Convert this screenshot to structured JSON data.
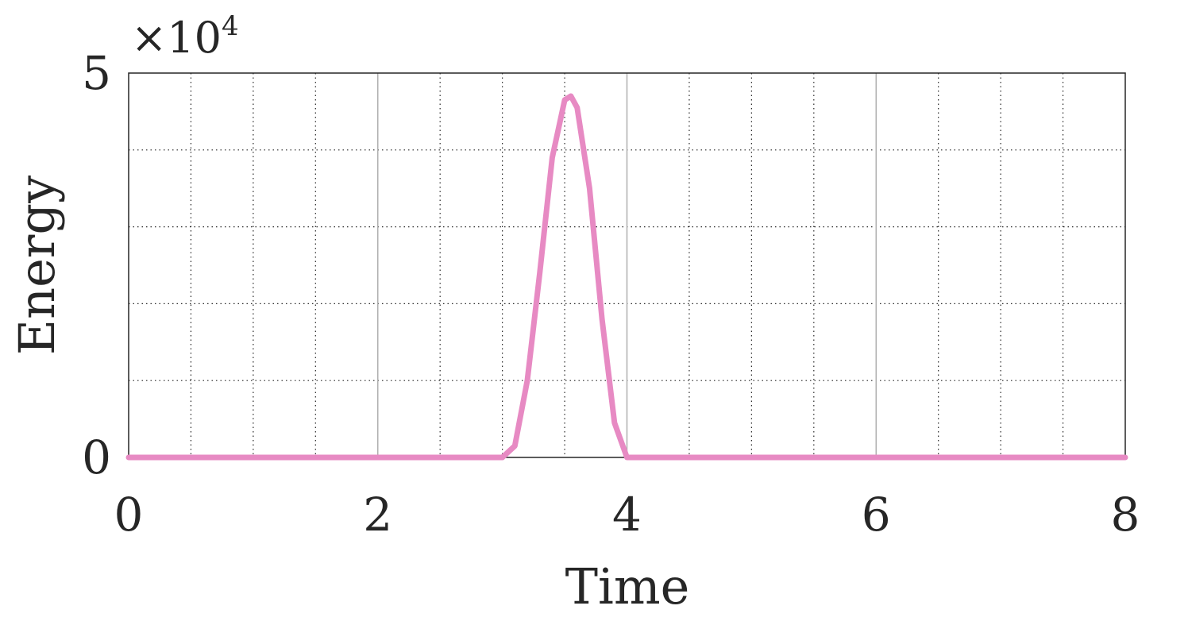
{
  "chart_data": {
    "type": "line",
    "xlabel": "Time",
    "ylabel": "Energy",
    "xlim": [
      0,
      8
    ],
    "ylim": [
      0,
      50000
    ],
    "xticks": [
      "0",
      "2",
      "4",
      "6",
      "8"
    ],
    "yticks": [
      "0",
      "5"
    ],
    "y_exponent": {
      "base": "×10",
      "power": "4"
    },
    "grid": true,
    "minor_grid": true,
    "series": [
      {
        "color": "#e78ac3",
        "x": [
          0,
          3.0,
          3.1,
          3.2,
          3.3,
          3.4,
          3.5,
          3.55,
          3.6,
          3.7,
          3.8,
          3.9,
          4.0,
          8
        ],
        "y": [
          0,
          0,
          1500,
          10000,
          24000,
          39000,
          46500,
          47000,
          45500,
          35000,
          18000,
          4500,
          0,
          0
        ]
      }
    ]
  }
}
